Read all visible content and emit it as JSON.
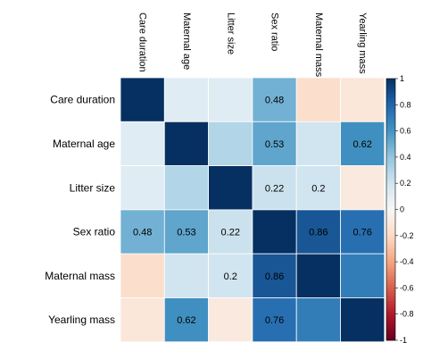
{
  "chart_data": {
    "type": "heatmap",
    "variables": [
      "Care duration",
      "Maternal age",
      "Litter size",
      "Sex ratio",
      "Maternal mass",
      "Yearling mass"
    ],
    "matrix": [
      [
        1,
        0.12,
        0.12,
        0.48,
        -0.18,
        -0.12
      ],
      [
        0.12,
        1,
        0.3,
        0.53,
        0.2,
        0.62
      ],
      [
        0.12,
        0.3,
        1,
        0.22,
        0.2,
        -0.1
      ],
      [
        0.48,
        0.53,
        0.22,
        1,
        0.86,
        0.76
      ],
      [
        -0.18,
        0.2,
        0.2,
        0.86,
        1,
        0.7
      ],
      [
        -0.12,
        0.62,
        -0.1,
        0.76,
        0.7,
        1
      ]
    ],
    "cell_labels": [
      [
        "",
        "",
        "",
        "0.48",
        "",
        ""
      ],
      [
        "",
        "",
        "",
        "0.53",
        "",
        "0.62"
      ],
      [
        "",
        "",
        "",
        "0.22",
        "0.2",
        ""
      ],
      [
        "0.48",
        "0.53",
        "0.22",
        "",
        "0.86",
        "0.76"
      ],
      [
        "",
        "",
        "0.2",
        "0.86",
        "",
        ""
      ],
      [
        "",
        "0.62",
        "",
        "0.76",
        "",
        ""
      ]
    ],
    "colorbar": {
      "range": [
        -1,
        1
      ],
      "ticks": [
        "1",
        "0.8",
        "0.6",
        "0.4",
        "0.2",
        "0",
        "-0.2",
        "-0.4",
        "-0.6",
        "-0.8",
        "-1"
      ],
      "tick_values": [
        1,
        0.8,
        0.6,
        0.4,
        0.2,
        0,
        -0.2,
        -0.4,
        -0.6,
        -0.8,
        -1
      ]
    },
    "colors": {
      "negative_end": "#67001f",
      "neutral": "#f7f7f7",
      "positive_end": "#053061"
    }
  }
}
